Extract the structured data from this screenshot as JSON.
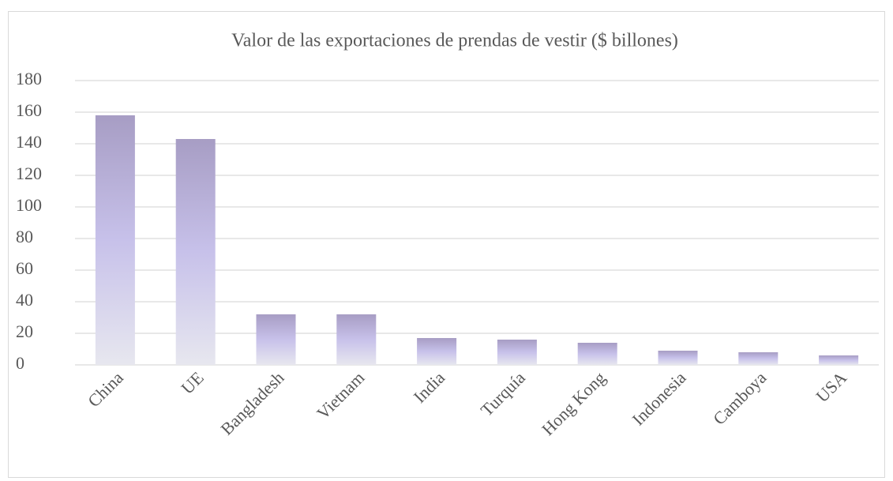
{
  "chart_data": {
    "type": "bar",
    "title": "Valor de las exportaciones de prendas de vestir ($ billones)",
    "categories": [
      "China",
      "UE",
      "Bangladesh",
      "Vietnam",
      "India",
      "Turquía",
      "Hong Kong",
      "Indonesia",
      "Camboya",
      "USA"
    ],
    "values": [
      158,
      143,
      32,
      32,
      17,
      16,
      14,
      9,
      8,
      6
    ],
    "gradient": [
      "#a79dc4",
      "#c7c1ea",
      "#e7e7ef"
    ],
    "ylim": [
      0,
      180
    ],
    "yticks": [
      0,
      20,
      40,
      60,
      80,
      100,
      120,
      140,
      160,
      180
    ],
    "grid": true
  }
}
